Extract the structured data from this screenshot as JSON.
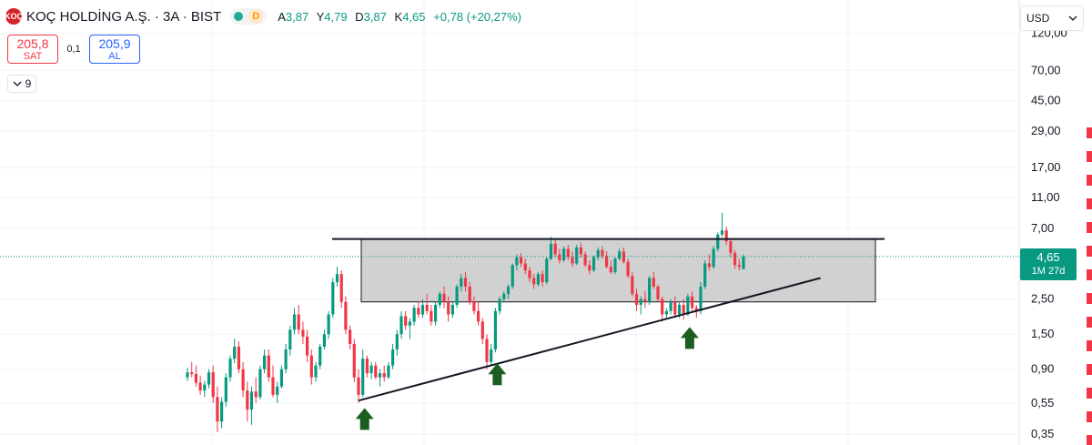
{
  "header": {
    "logo_text": "KOÇ",
    "symbol_title": "KOÇ HOLDİNG A.Ş. · 3A · BIST",
    "market_status": "D",
    "ohlc": {
      "open_label": "A",
      "open": "3,87",
      "high_label": "Y",
      "high": "4,79",
      "low_label": "D",
      "low": "3,87",
      "close_label": "K",
      "close": "4,65",
      "change": "+0,78 (+20,27%)"
    }
  },
  "trade": {
    "sell_price": "205,8",
    "sell_label": "SAT",
    "spread": "0,1",
    "buy_price": "205,9",
    "buy_label": "AL"
  },
  "indicators_toggle": {
    "count": "9",
    "icon": "chevron-down-icon"
  },
  "currency": {
    "label": "USD",
    "icon": "chevron-down-icon"
  },
  "last_price": {
    "value": "4,65",
    "countdown": "1M 27d"
  },
  "colors": {
    "up": "#089981",
    "down": "#f23645",
    "arrow": "#1b5e20",
    "zone": "#cccccc"
  },
  "chart_data": {
    "type": "candlestick",
    "scale": "log",
    "y_ticks": [
      "120,00",
      "70,00",
      "45,00",
      "29,00",
      "17,00",
      "11,00",
      "7,00",
      "2,50",
      "1,50",
      "0,90",
      "0,55",
      "0,35"
    ],
    "y_tick_values": [
      120,
      70,
      45,
      29,
      17,
      11,
      7,
      2.5,
      1.5,
      0.9,
      0.55,
      0.35
    ],
    "ylim": [
      0.33,
      130
    ],
    "last_value": 4.65,
    "candles": [
      [
        0.8,
        0.92,
        0.76,
        0.86
      ],
      [
        0.86,
        1.0,
        0.8,
        0.84
      ],
      [
        0.84,
        0.95,
        0.7,
        0.74
      ],
      [
        0.74,
        0.82,
        0.62,
        0.66
      ],
      [
        0.66,
        0.76,
        0.6,
        0.72
      ],
      [
        0.72,
        0.9,
        0.68,
        0.86
      ],
      [
        0.86,
        0.95,
        0.55,
        0.6
      ],
      [
        0.6,
        0.7,
        0.36,
        0.42
      ],
      [
        0.42,
        0.6,
        0.38,
        0.56
      ],
      [
        0.56,
        0.85,
        0.52,
        0.8
      ],
      [
        0.8,
        1.1,
        0.75,
        1.05
      ],
      [
        1.05,
        1.4,
        0.98,
        1.25
      ],
      [
        1.25,
        1.35,
        0.85,
        0.9
      ],
      [
        0.9,
        1.0,
        0.6,
        0.66
      ],
      [
        0.66,
        0.75,
        0.42,
        0.5
      ],
      [
        0.5,
        0.7,
        0.4,
        0.65
      ],
      [
        0.65,
        0.8,
        0.55,
        0.6
      ],
      [
        0.6,
        0.95,
        0.58,
        0.9
      ],
      [
        0.9,
        1.2,
        0.85,
        1.1
      ],
      [
        1.1,
        1.2,
        0.75,
        0.8
      ],
      [
        0.8,
        0.95,
        0.6,
        0.62
      ],
      [
        0.62,
        0.75,
        0.55,
        0.7
      ],
      [
        0.7,
        0.95,
        0.68,
        0.9
      ],
      [
        0.9,
        1.3,
        0.85,
        1.2
      ],
      [
        1.2,
        1.7,
        1.1,
        1.6
      ],
      [
        1.6,
        2.2,
        1.5,
        2.0
      ],
      [
        2.0,
        2.3,
        1.5,
        1.6
      ],
      [
        1.6,
        1.8,
        1.3,
        1.45
      ],
      [
        1.45,
        1.6,
        1.0,
        1.1
      ],
      [
        1.1,
        1.2,
        0.72,
        0.8
      ],
      [
        0.8,
        1.0,
        0.75,
        0.95
      ],
      [
        0.95,
        1.3,
        0.9,
        1.25
      ],
      [
        1.25,
        1.6,
        1.2,
        1.5
      ],
      [
        1.5,
        2.1,
        1.4,
        2.0
      ],
      [
        2.0,
        3.4,
        1.9,
        3.2
      ],
      [
        3.2,
        4.0,
        3.0,
        3.6
      ],
      [
        3.6,
        3.8,
        2.2,
        2.4
      ],
      [
        2.4,
        2.6,
        1.5,
        1.6
      ],
      [
        1.6,
        1.7,
        1.2,
        1.3
      ],
      [
        1.3,
        1.4,
        0.75,
        0.8
      ],
      [
        0.8,
        0.9,
        0.55,
        0.62
      ],
      [
        0.62,
        1.2,
        0.6,
        1.05
      ],
      [
        1.05,
        1.1,
        0.8,
        0.85
      ],
      [
        0.85,
        1.0,
        0.78,
        0.95
      ],
      [
        0.95,
        1.0,
        0.78,
        0.8
      ],
      [
        0.8,
        0.9,
        0.7,
        0.85
      ],
      [
        0.85,
        0.95,
        0.75,
        0.8
      ],
      [
        0.8,
        1.0,
        0.78,
        0.95
      ],
      [
        0.95,
        1.3,
        0.9,
        1.2
      ],
      [
        1.2,
        1.6,
        1.1,
        1.5
      ],
      [
        1.5,
        2.1,
        1.4,
        1.95
      ],
      [
        1.95,
        2.1,
        1.6,
        1.7
      ],
      [
        1.7,
        1.9,
        1.4,
        1.8
      ],
      [
        1.8,
        2.3,
        1.7,
        2.2
      ],
      [
        2.2,
        2.4,
        1.9,
        2.0
      ],
      [
        2.0,
        2.5,
        1.9,
        2.3
      ],
      [
        2.3,
        2.7,
        2.0,
        2.1
      ],
      [
        2.1,
        2.3,
        1.7,
        1.8
      ],
      [
        1.8,
        2.4,
        1.7,
        2.3
      ],
      [
        2.3,
        2.8,
        2.2,
        2.7
      ],
      [
        2.7,
        3.0,
        2.2,
        2.4
      ],
      [
        2.4,
        2.6,
        1.8,
        2.0
      ],
      [
        2.0,
        2.4,
        1.9,
        2.3
      ],
      [
        2.3,
        3.1,
        2.2,
        3.0
      ],
      [
        3.0,
        3.6,
        2.8,
        3.4
      ],
      [
        3.4,
        3.7,
        2.8,
        3.0
      ],
      [
        3.0,
        3.2,
        2.3,
        2.4
      ],
      [
        2.4,
        2.6,
        2.0,
        2.1
      ],
      [
        2.1,
        2.4,
        1.7,
        1.8
      ],
      [
        1.8,
        1.9,
        1.3,
        1.4
      ],
      [
        1.4,
        1.5,
        0.9,
        1.0
      ],
      [
        1.0,
        1.3,
        0.95,
        1.2
      ],
      [
        1.2,
        2.2,
        1.15,
        2.1
      ],
      [
        2.1,
        2.6,
        2.0,
        2.5
      ],
      [
        2.5,
        2.8,
        2.4,
        2.7
      ],
      [
        2.7,
        3.1,
        2.5,
        3.0
      ],
      [
        3.0,
        4.2,
        2.9,
        4.1
      ],
      [
        4.1,
        4.8,
        3.8,
        4.6
      ],
      [
        4.6,
        4.9,
        4.0,
        4.2
      ],
      [
        4.2,
        4.5,
        3.6,
        3.8
      ],
      [
        3.8,
        4.0,
        3.2,
        3.4
      ],
      [
        3.4,
        3.6,
        2.9,
        3.1
      ],
      [
        3.1,
        3.7,
        3.0,
        3.6
      ],
      [
        3.6,
        3.8,
        3.0,
        3.2
      ],
      [
        3.2,
        4.6,
        3.1,
        4.5
      ],
      [
        4.5,
        6.2,
        4.4,
        5.6
      ],
      [
        5.6,
        5.9,
        4.6,
        4.8
      ],
      [
        4.8,
        5.2,
        4.2,
        4.4
      ],
      [
        4.4,
        5.4,
        4.3,
        5.2
      ],
      [
        5.2,
        5.5,
        4.4,
        4.6
      ],
      [
        4.6,
        5.0,
        4.0,
        4.2
      ],
      [
        4.2,
        5.5,
        4.1,
        5.3
      ],
      [
        5.3,
        5.7,
        4.6,
        4.8
      ],
      [
        4.8,
        5.0,
        4.0,
        4.1
      ],
      [
        4.1,
        4.4,
        3.6,
        3.8
      ],
      [
        3.8,
        4.7,
        3.7,
        4.6
      ],
      [
        4.6,
        5.3,
        4.4,
        5.1
      ],
      [
        5.1,
        5.4,
        4.5,
        4.7
      ],
      [
        4.7,
        5.0,
        3.9,
        4.0
      ],
      [
        4.0,
        4.4,
        3.6,
        3.7
      ],
      [
        3.7,
        4.6,
        3.6,
        4.5
      ],
      [
        4.5,
        5.2,
        4.4,
        5.0
      ],
      [
        5.0,
        5.3,
        4.2,
        4.3
      ],
      [
        4.3,
        4.5,
        3.4,
        3.5
      ],
      [
        3.5,
        3.7,
        2.6,
        2.7
      ],
      [
        2.7,
        2.9,
        2.1,
        2.3
      ],
      [
        2.3,
        2.6,
        2.0,
        2.5
      ],
      [
        2.5,
        2.8,
        2.2,
        2.4
      ],
      [
        2.4,
        3.5,
        2.3,
        3.4
      ],
      [
        3.4,
        3.7,
        2.9,
        3.0
      ],
      [
        3.0,
        3.1,
        2.4,
        2.5
      ],
      [
        2.5,
        2.6,
        1.8,
        2.0
      ],
      [
        2.0,
        2.2,
        1.9,
        2.1
      ],
      [
        2.1,
        2.5,
        2.0,
        2.4
      ],
      [
        2.4,
        2.6,
        1.9,
        2.0
      ],
      [
        2.0,
        2.4,
        1.9,
        2.3
      ],
      [
        2.3,
        2.5,
        1.85,
        2.0
      ],
      [
        2.0,
        2.7,
        1.95,
        2.6
      ],
      [
        2.6,
        2.8,
        2.1,
        2.2
      ],
      [
        2.2,
        2.3,
        1.9,
        2.1
      ],
      [
        2.1,
        3.2,
        2.0,
        3.0
      ],
      [
        3.0,
        4.4,
        2.9,
        4.2
      ],
      [
        4.2,
        4.8,
        3.8,
        4.0
      ],
      [
        4.0,
        5.4,
        3.9,
        5.2
      ],
      [
        5.2,
        6.6,
        5.0,
        6.4
      ],
      [
        6.4,
        8.8,
        6.2,
        6.8
      ],
      [
        6.8,
        7.2,
        5.5,
        5.8
      ],
      [
        5.8,
        6.1,
        4.6,
        4.9
      ],
      [
        4.9,
        5.1,
        3.9,
        4.1
      ],
      [
        4.1,
        4.5,
        3.8,
        4.0
      ],
      [
        3.87,
        4.79,
        3.87,
        4.65
      ]
    ],
    "annotations": {
      "resistance_level": 6.0,
      "zone": {
        "top": 6.0,
        "bottom": 2.4
      },
      "support_trendline": {
        "from_candle": 40,
        "from_value": 0.57,
        "to_candle": 148,
        "to_value": 3.4
      },
      "up_arrows_at_candles": [
        41,
        72,
        117
      ]
    }
  }
}
